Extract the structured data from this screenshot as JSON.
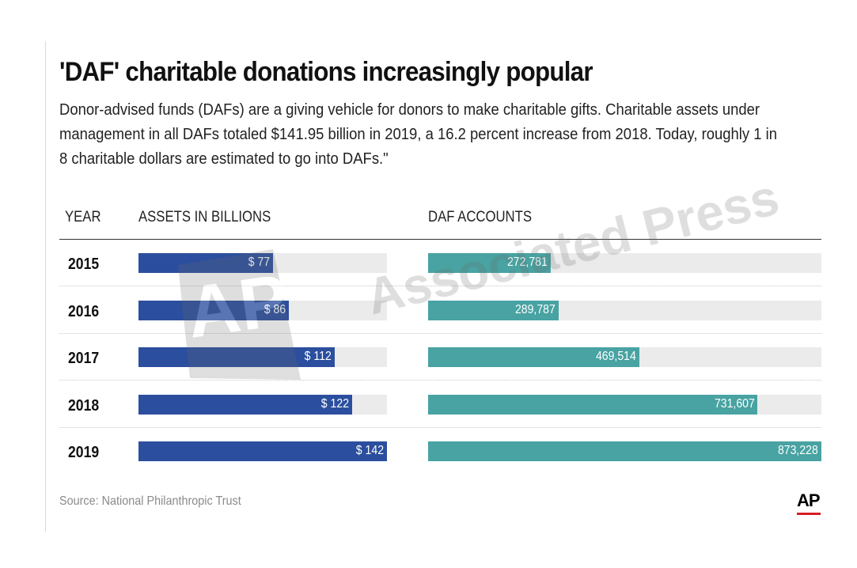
{
  "chart_data": {
    "type": "bar",
    "title": "'DAF' charitable donations increasingly popular",
    "subtitle": "Donor-advised funds (DAFs) are a giving vehicle for donors to make charitable gifts. Charitable assets under management in all DAFs totaled $141.95 billion in 2019, a 16.2 percent increase from 2018. Today, roughly 1 in 8 charitable dollars are estimated to go into DAFs.\"",
    "categories": [
      "2015",
      "2016",
      "2017",
      "2018",
      "2019"
    ],
    "columns": {
      "year": "YEAR",
      "assets": "ASSETS IN BILLIONS",
      "accounts": "DAF ACCOUNTS"
    },
    "series": [
      {
        "name": "Assets in billions",
        "values": [
          77,
          86,
          112,
          122,
          142
        ],
        "labels": [
          "$ 77",
          "$ 86",
          "$ 112",
          "$ 122",
          "$ 142"
        ],
        "max": 142,
        "color": "#2b4f9e"
      },
      {
        "name": "DAF accounts",
        "values": [
          272781,
          289787,
          469514,
          731607,
          873228
        ],
        "labels": [
          "272,781",
          "289,787",
          "469,514",
          "731,607",
          "873,228"
        ],
        "max": 873228,
        "color": "#48a3a2"
      }
    ],
    "source": "Source: National Philanthropic Trust"
  },
  "branding": {
    "logo": "AP",
    "watermark": "Associated Press",
    "watermark_mark": "AP"
  }
}
